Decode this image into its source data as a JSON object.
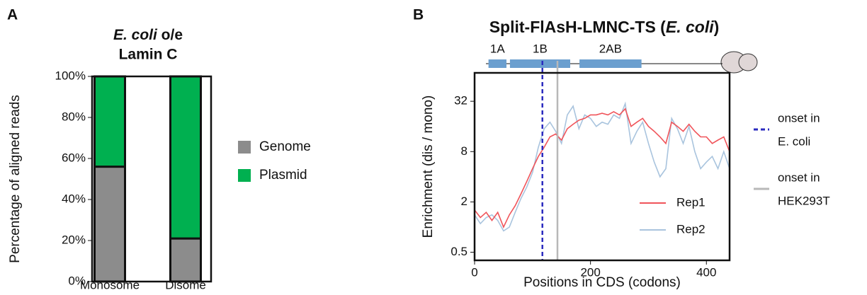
{
  "chart_data": [
    {
      "type": "stacked_bar",
      "panel_label": "A",
      "title": [
        "E. coli",
        " o/e",
        "Lamin C"
      ],
      "ylabel": "Percentage of aligned reads",
      "categories": [
        "Monosome",
        "Disome"
      ],
      "series": [
        {
          "name": "Genome",
          "color": "#8c8c8c",
          "values": [
            56,
            21
          ]
        },
        {
          "name": "Plasmid",
          "color": "#00b050",
          "values": [
            44,
            79
          ]
        }
      ],
      "ylim": [
        0,
        100
      ],
      "yticks": [
        {
          "value": 0,
          "label": "0%"
        },
        {
          "value": 20,
          "label": "20%"
        },
        {
          "value": 40,
          "label": "40%"
        },
        {
          "value": 60,
          "label": "60%"
        },
        {
          "value": 80,
          "label": "80%"
        },
        {
          "value": 100,
          "label": "100%"
        }
      ]
    },
    {
      "type": "line",
      "panel_label": "B",
      "title": [
        "Split-FlAsH-LMNC-TS (",
        "E. coli",
        ")"
      ],
      "xlabel": "Positions in CDS (codons)",
      "ylabel": "Enrichment (dis / mono)",
      "log_y": true,
      "legend": "lower right",
      "x": [
        0,
        10,
        20,
        30,
        40,
        50,
        60,
        70,
        80,
        90,
        100,
        110,
        120,
        130,
        140,
        150,
        160,
        170,
        180,
        190,
        200,
        210,
        220,
        230,
        240,
        250,
        260,
        270,
        280,
        290,
        300,
        310,
        320,
        330,
        340,
        350,
        360,
        370,
        380,
        390,
        400,
        410,
        420,
        430,
        440
      ],
      "series": [
        {
          "name": "Rep1",
          "color": "#f0545a",
          "values": [
            1.6,
            1.3,
            1.5,
            1.2,
            1.5,
            1.0,
            1.4,
            1.8,
            2.5,
            3.5,
            5,
            7,
            9,
            12,
            13,
            11,
            15,
            17,
            19,
            20,
            22,
            22,
            23,
            22,
            24,
            22,
            26,
            16,
            18,
            20,
            16,
            14,
            12,
            10,
            18,
            16,
            14,
            17,
            14,
            12,
            12,
            10,
            11,
            12,
            8
          ]
        },
        {
          "name": "Rep2",
          "color": "#a9c4de",
          "values": [
            1.4,
            1.1,
            1.3,
            1.4,
            1.2,
            0.9,
            1.0,
            1.5,
            2.2,
            3,
            4.5,
            9,
            15,
            18,
            14,
            10,
            22,
            28,
            15,
            22,
            20,
            16,
            18,
            17,
            22,
            20,
            30,
            10,
            14,
            18,
            10,
            6,
            4,
            5,
            20,
            15,
            10,
            16,
            8,
            5,
            6,
            7,
            5,
            8,
            5
          ]
        }
      ],
      "xlim": [
        0,
        440
      ],
      "xticks": [
        0,
        200,
        400
      ],
      "ylim": [
        0.4,
        70
      ],
      "yticks": [
        0.5,
        2,
        8,
        32
      ],
      "domains": [
        {
          "label": "1A",
          "start": 24,
          "end": 55
        },
        {
          "label": "1B",
          "start": 61,
          "end": 165
        },
        {
          "label": "2AB",
          "start": 181,
          "end": 288
        }
      ],
      "vlines": [
        {
          "label": [
            "onset in",
            "E. coli"
          ],
          "x": 117,
          "color": "#2b2bbf",
          "dashed": true
        },
        {
          "label": [
            "onset in",
            "HEK293T"
          ],
          "x": 143,
          "color": "#b8b8b8",
          "dashed": false
        }
      ]
    }
  ]
}
